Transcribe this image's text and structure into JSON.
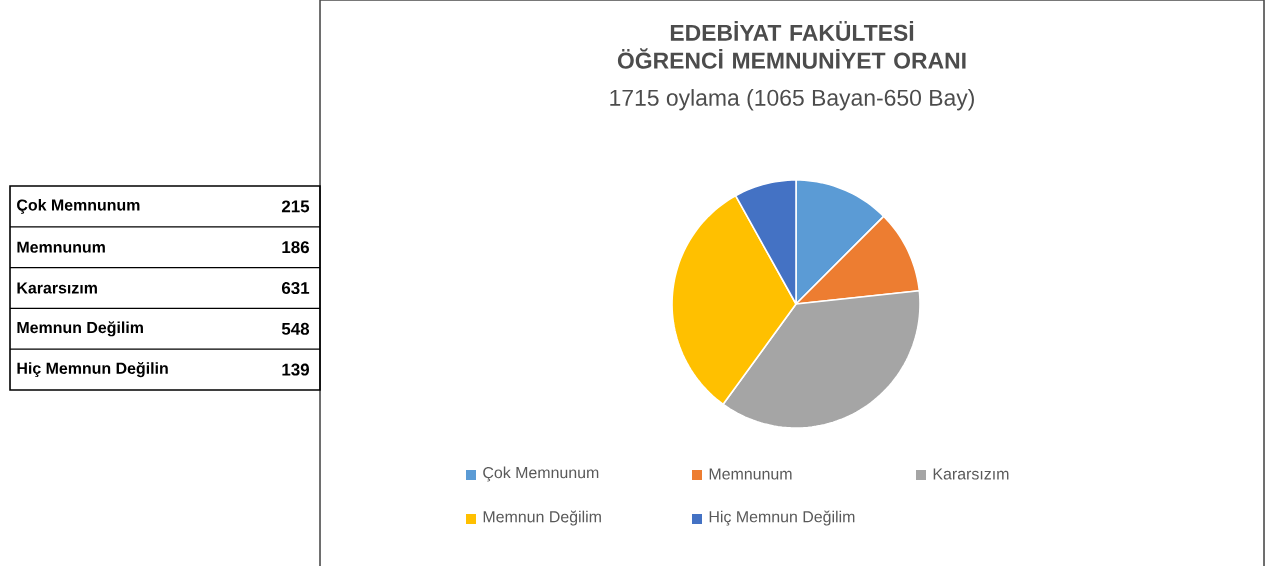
{
  "chart_data": {
    "type": "pie",
    "title": "EDEBİYAT FAKÜLTESİ ÖĞRENCİ MEMNUNİYET ORANI",
    "subtitle": "1715 oylama (1065 Bayan-650  Bay)",
    "categories": [
      "Çok Memnunum",
      "Memnunum",
      "Kararsızım",
      "Memnun Değilim",
      "Hiç Memnun Değilim"
    ],
    "values": [
      12.5,
      10.8,
      36.7,
      31.9,
      8.1
    ],
    "colors": [
      "#5b9bd5",
      "#ed7d31",
      "#a5a5a5",
      "#ffc000",
      "#4472c4"
    ],
    "annotations": [
      "Çok Memnunum",
      "215",
      "Memnunum",
      "186",
      "Kararsızım",
      "631",
      "Memnun Değilim",
      "548",
      "Hiç Memnun Değilin",
      "139"
    ],
    "legend": "bottom"
  }
}
